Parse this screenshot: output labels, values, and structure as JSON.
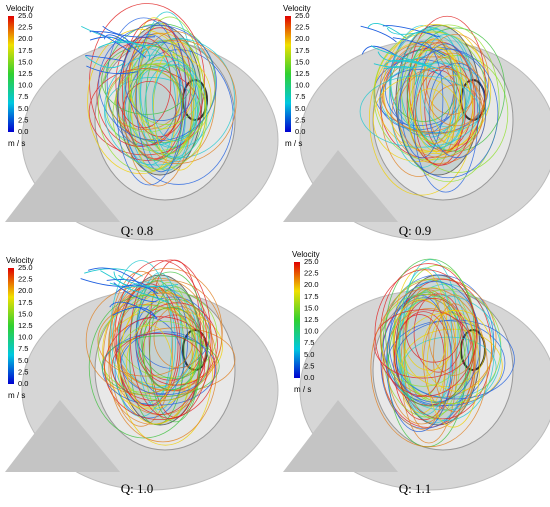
{
  "panels": [
    {
      "caption": "Q: 0.8",
      "legend": {
        "title": "Velocity",
        "ticks": [
          "25.0",
          "22.5",
          "20.0",
          "17.5",
          "15.0",
          "12.5",
          "10.0",
          "7.5",
          "5.0",
          "2.5",
          "0.0"
        ],
        "unit": "m / s"
      }
    },
    {
      "caption": "Q: 0.9",
      "legend": {
        "title": "Velocity",
        "ticks": [
          "25.0",
          "22.5",
          "20.0",
          "17.5",
          "15.0",
          "12.5",
          "10.0",
          "7.5",
          "5.0",
          "2.5",
          "0.0"
        ],
        "unit": "m / s"
      }
    },
    {
      "caption": "Q: 1.0",
      "legend": {
        "title": "Velocity",
        "ticks": [
          "25.0",
          "22.5",
          "20.0",
          "17.5",
          "15.0",
          "12.5",
          "10.0",
          "7.5",
          "5.0",
          "2.5",
          "0.0"
        ],
        "unit": "m / s"
      }
    },
    {
      "caption": "Q: 1.1",
      "legend": {
        "title": "Velocity",
        "ticks": [
          "25.0",
          "22.5",
          "20.0",
          "17.5",
          "15.0",
          "12.5",
          "10.0",
          "7.5",
          "5.0",
          "2.5",
          "0.0"
        ],
        "unit": "m / s"
      }
    }
  ]
}
